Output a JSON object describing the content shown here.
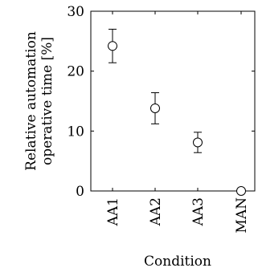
{
  "chart_data": {
    "type": "scatter",
    "title": "",
    "xlabel": "Condition",
    "ylabel_lines": [
      "Relative automation",
      "operative time [%]"
    ],
    "categories": [
      "AA1",
      "AA2",
      "AA3",
      "MAN"
    ],
    "series": [
      {
        "values": [
          24.2,
          13.8,
          8.1,
          0.0
        ],
        "err_low": [
          21.4,
          11.2,
          6.4,
          0.0
        ],
        "err_high": [
          27.0,
          16.4,
          9.8,
          0.0
        ]
      }
    ],
    "ylim": [
      0,
      30
    ],
    "yticks": [
      0,
      10,
      20,
      30
    ],
    "yticks_labels": [
      "0",
      "10",
      "20",
      "30"
    ],
    "grid": false,
    "legend": "none"
  }
}
